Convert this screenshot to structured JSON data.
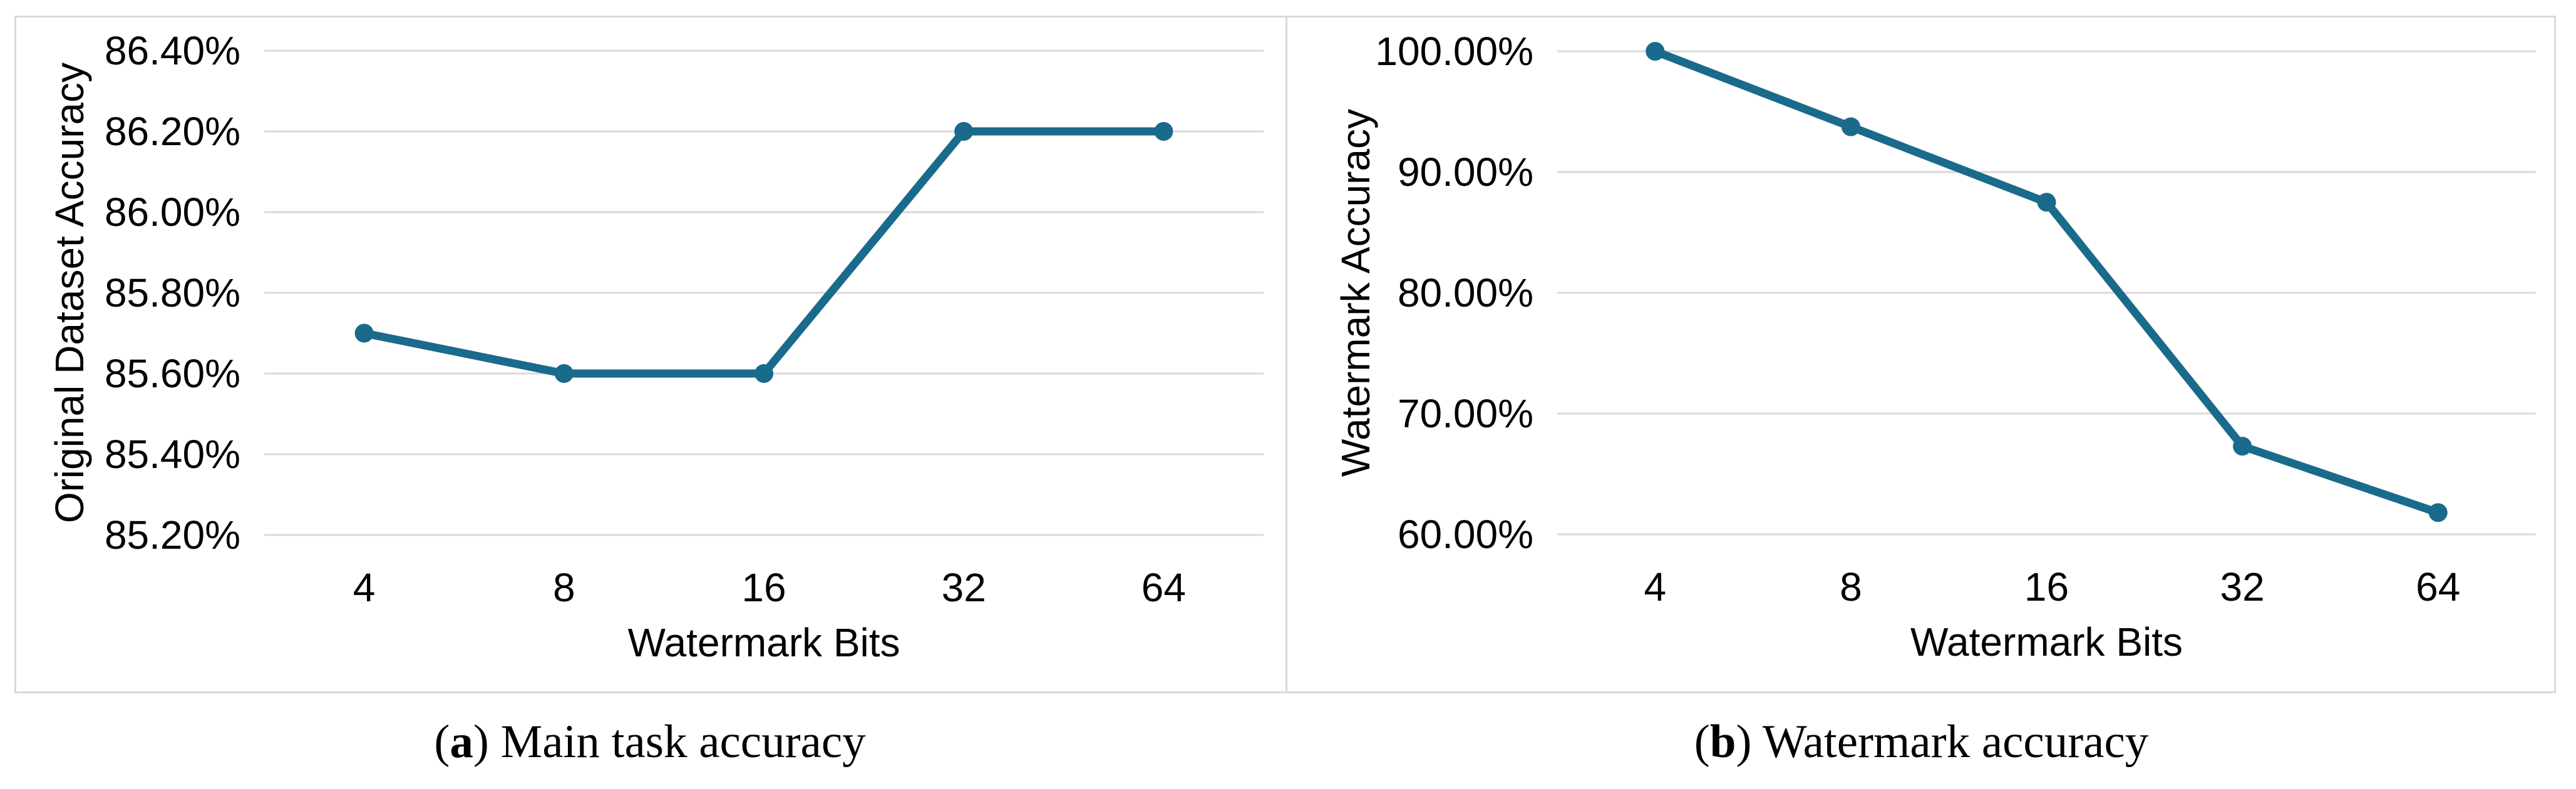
{
  "figure": {
    "background": "#ffffff",
    "description_visible_text_only": true
  },
  "colors": {
    "line": "#1a6a8c",
    "marker": "#1a6a8c",
    "gridline": "#d9d9d9",
    "panel_border": "#d9d9d9",
    "text": "#000000"
  },
  "style": {
    "line_stroke_width": 13,
    "marker_radius": 15,
    "gridline_width": 3
  },
  "chart_data": [
    {
      "type": "line",
      "title": "(a) Main task accuracy",
      "categories": [
        "4",
        "8",
        "16",
        "32",
        "64"
      ],
      "series": [
        {
          "name": "Original Dataset Accuracy",
          "values": [
            85.7,
            85.6,
            85.6,
            86.2,
            86.2
          ]
        }
      ],
      "xlabel": "Watermark Bits",
      "ylabel": "Original Dataset Accuracy",
      "ylim": [
        85.2,
        86.4
      ],
      "ytick_step": 0.2,
      "y_tick_labels": [
        "86.40%",
        "86.20%",
        "86.00%",
        "85.80%",
        "85.60%",
        "85.40%",
        "85.20%"
      ],
      "grid": true,
      "legend_position": "none",
      "line_color": "#1a6a8c",
      "marker": "circle",
      "caption": {
        "open": "(",
        "label": "a",
        "close": ") ",
        "text": "Main task accuracy"
      }
    },
    {
      "type": "line",
      "title": "(b) Watermark accuracy",
      "categories": [
        "4",
        "8",
        "16",
        "32",
        "64"
      ],
      "series": [
        {
          "name": "Watermark Accuracy",
          "values": [
            100.0,
            93.75,
            87.5,
            67.3,
            61.8
          ]
        }
      ],
      "xlabel": "Watermark Bits",
      "ylabel": "Watermark Accuracy",
      "ylim": [
        60.0,
        100.0
      ],
      "ytick_step": 10.0,
      "y_tick_labels": [
        "100.00%",
        "90.00%",
        "80.00%",
        "70.00%",
        "60.00%"
      ],
      "grid": true,
      "legend_position": "none",
      "line_color": "#1a6a8c",
      "marker": "circle",
      "caption": {
        "open": "(",
        "label": "b",
        "close": ") ",
        "text": "Watermark accuracy"
      }
    }
  ]
}
